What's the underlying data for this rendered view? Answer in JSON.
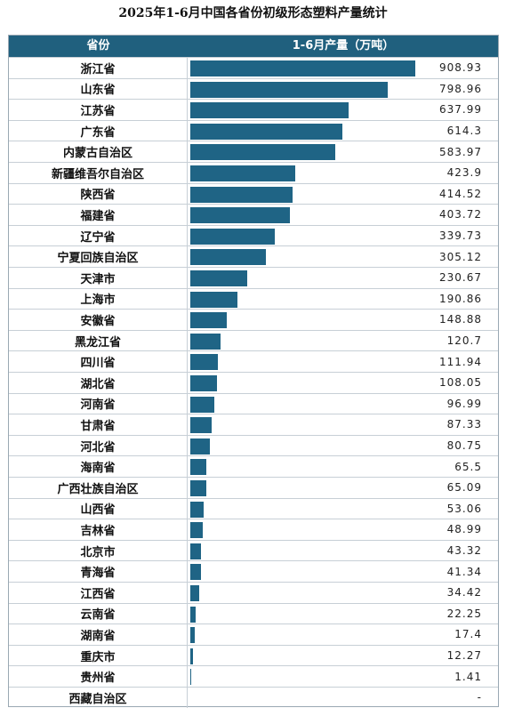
{
  "chart_data": {
    "type": "bar",
    "title": "2025年1-6月中国各省份初级形态塑料产量统计",
    "header": {
      "province": "省份",
      "value": "1-6月产量（万吨）"
    },
    "bar_color": "#1f6485",
    "header_color": "#20607e",
    "categories": [
      "浙江省",
      "山东省",
      "江苏省",
      "广东省",
      "内蒙古自治区",
      "新疆维吾尔自治区",
      "陕西省",
      "福建省",
      "辽宁省",
      "宁夏回族自治区",
      "天津市",
      "上海市",
      "安徽省",
      "黑龙江省",
      "四川省",
      "湖北省",
      "河南省",
      "甘肃省",
      "河北省",
      "海南省",
      "广西壮族自治区",
      "山西省",
      "吉林省",
      "北京市",
      "青海省",
      "江西省",
      "云南省",
      "湖南省",
      "重庆市",
      "贵州省",
      "西藏自治区"
    ],
    "values": [
      908.93,
      798.96,
      637.99,
      614.3,
      583.97,
      423.9,
      414.52,
      403.72,
      339.73,
      305.12,
      230.67,
      190.86,
      148.88,
      120.7,
      111.94,
      108.05,
      96.99,
      87.33,
      80.75,
      65.5,
      65.09,
      53.06,
      48.99,
      43.32,
      41.34,
      34.42,
      22.25,
      17.4,
      12.27,
      1.41,
      null
    ],
    "labels": [
      "908.93",
      "798.96",
      "637.99",
      "614.3",
      "583.97",
      "423.9",
      "414.52",
      "403.72",
      "339.73",
      "305.12",
      "230.67",
      "190.86",
      "148.88",
      "120.7",
      "111.94",
      "108.05",
      "96.99",
      "87.33",
      "80.75",
      "65.5",
      "65.09",
      "53.06",
      "48.99",
      "43.32",
      "41.34",
      "34.42",
      "22.25",
      "17.4",
      "12.27",
      "1.41",
      "-"
    ]
  }
}
